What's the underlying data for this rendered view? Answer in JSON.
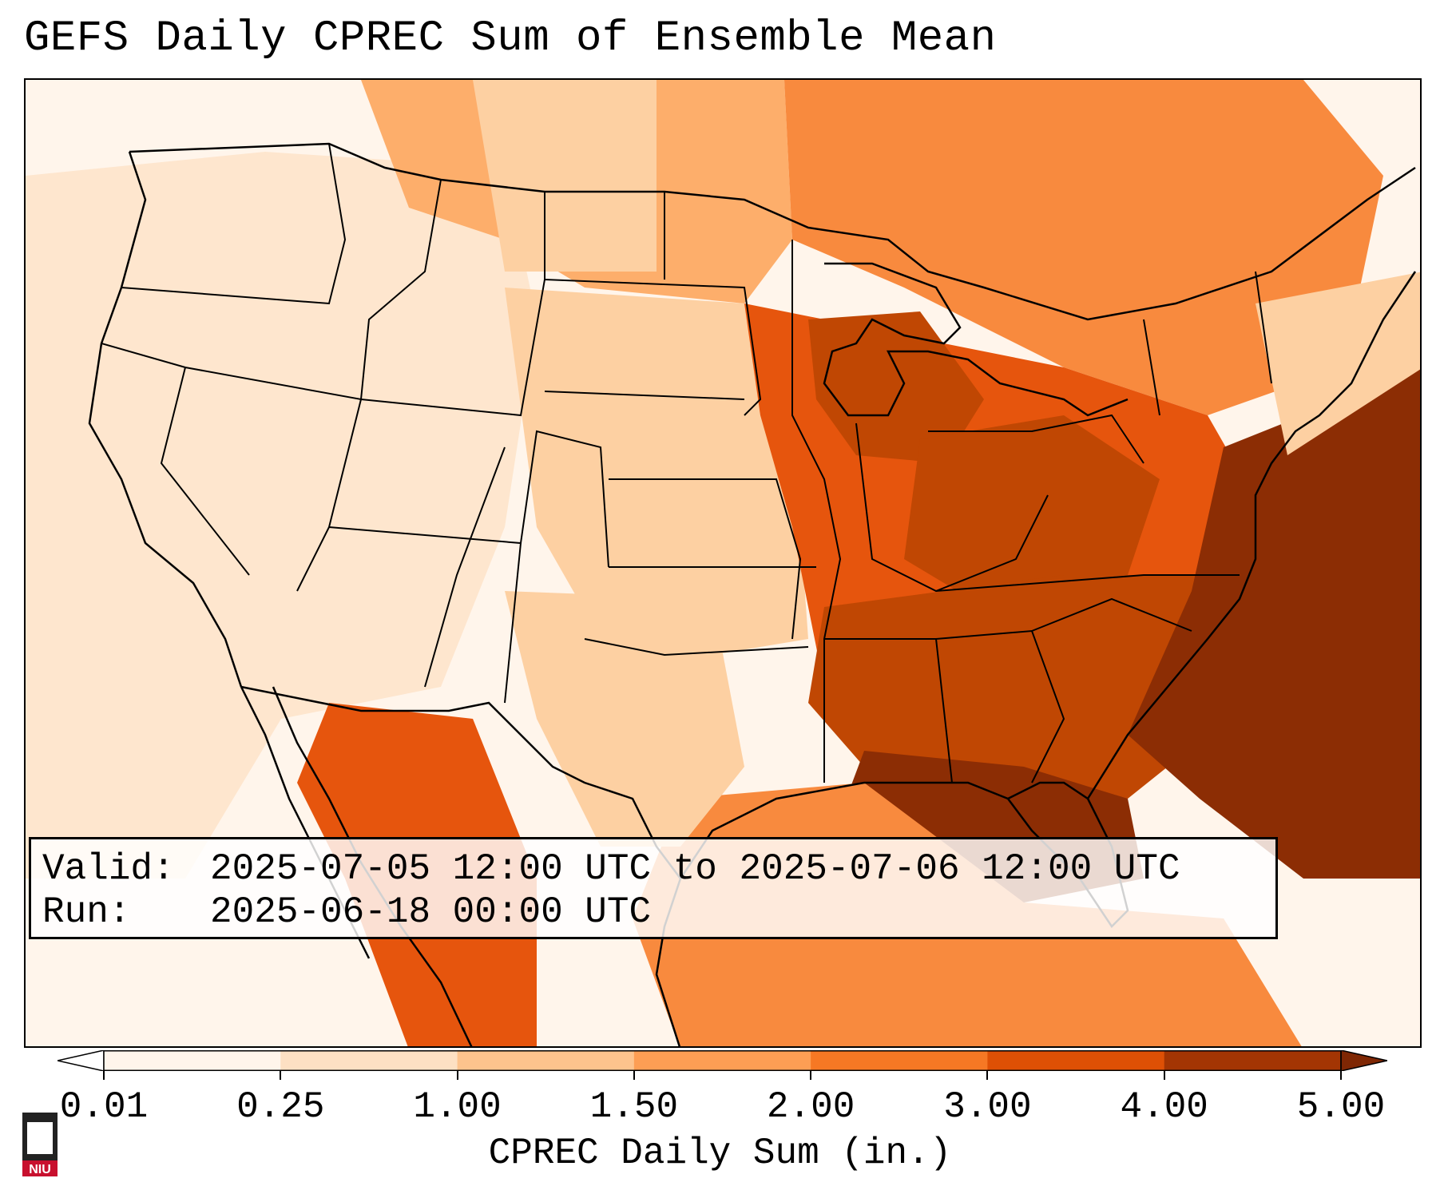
{
  "title": "GEFS Daily CPREC Sum of Ensemble Mean",
  "info": {
    "valid_label": "Valid:",
    "valid_text": "2025-07-05 12:00 UTC to 2025-07-06 12:00 UTC",
    "run_label": "Run:",
    "run_text": "2025-06-18 00:00 UTC"
  },
  "colorbar": {
    "label": "CPREC Daily Sum (in.)",
    "ticks": [
      "0.01",
      "0.25",
      "1.00",
      "1.50",
      "2.00",
      "3.00",
      "4.00",
      "5.00"
    ],
    "colors": [
      "#ffffff",
      "#fff5eb",
      "#fde0c3",
      "#fdc38d",
      "#fd9e54",
      "#f67824",
      "#de5005",
      "#a33503",
      "#7f2704"
    ],
    "extend": "both"
  },
  "logo": {
    "text": "NIU"
  },
  "map": {
    "region": "Contiguous United States with Mexico, Canada and Gulf of Mexico",
    "colors": {
      "none": "#fff5eb",
      "light": "#fee6ce",
      "low": "#fdd0a2",
      "mid": "#fdae6b",
      "high": "#f88a3e",
      "higher": "#e6550d",
      "highest": "#c04703",
      "max": "#8c2d04"
    }
  }
}
